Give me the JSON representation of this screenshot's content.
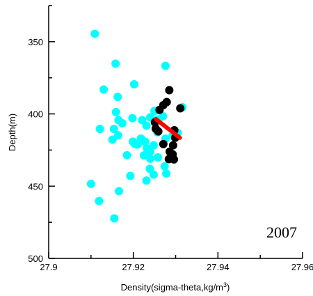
{
  "chart_data": {
    "type": "scatter",
    "xlabel": "Density(sigma-theta,kg/m",
    "xlabel_sup": "3",
    "xlabel_end": ")",
    "ylabel": "Depth(m)",
    "annotation": "2007",
    "xlim": [
      27.9,
      27.96
    ],
    "ylim": [
      325,
      500
    ],
    "y_inverted": true,
    "grid": false,
    "x_ticks": [
      27.9,
      27.92,
      27.94,
      27.96
    ],
    "x_tick_labels": [
      "27.9",
      "27.92",
      "27.94",
      "27.96"
    ],
    "y_ticks": [
      350,
      400,
      450,
      500
    ],
    "y_tick_labels": [
      "350",
      "400",
      "450",
      "500"
    ],
    "colors": {
      "cyan_series": "#00ffff",
      "black_series": "#000000",
      "fit_line": "#ff0000"
    },
    "series": [
      {
        "color": "#00ffff",
        "points": [
          [
            27.9109,
            344.5
          ],
          [
            27.9158,
            365.2
          ],
          [
            27.913,
            383.1
          ],
          [
            27.9163,
            388.2
          ],
          [
            27.9202,
            379.5
          ],
          [
            27.9276,
            366.7
          ],
          [
            27.9159,
            398.7
          ],
          [
            27.9165,
            404.3
          ],
          [
            27.9174,
            406.5
          ],
          [
            27.9198,
            402.9
          ],
          [
            27.9221,
            404.3
          ],
          [
            27.924,
            402.4
          ],
          [
            27.925,
            398.0
          ],
          [
            27.9231,
            408.1
          ],
          [
            27.9218,
            417.1
          ],
          [
            27.9228,
            419.2
          ],
          [
            27.9204,
            420.8
          ],
          [
            27.9154,
            410.4
          ],
          [
            27.9164,
            414.8
          ],
          [
            27.9151,
            417.8
          ],
          [
            27.9121,
            410.4
          ],
          [
            27.9199,
            419.2
          ],
          [
            27.921,
            421.2
          ],
          [
            27.9232,
            423.7
          ],
          [
            27.9248,
            421.7
          ],
          [
            27.9257,
            412.7
          ],
          [
            27.9259,
            403.9
          ],
          [
            27.927,
            401.6
          ],
          [
            27.9276,
            417.1
          ],
          [
            27.9293,
            415.2
          ],
          [
            27.9305,
            413.2
          ],
          [
            27.9316,
            395.4
          ],
          [
            27.924,
            426.0
          ],
          [
            27.9225,
            428.7
          ],
          [
            27.924,
            431.0
          ],
          [
            27.9258,
            430.1
          ],
          [
            27.9274,
            436.3
          ],
          [
            27.9239,
            438.0
          ],
          [
            27.9248,
            442.0
          ],
          [
            27.9231,
            446.1
          ],
          [
            27.9278,
            441.3
          ],
          [
            27.9185,
            428.6
          ],
          [
            27.9193,
            442.9
          ],
          [
            27.91,
            448.4
          ],
          [
            27.9166,
            453.5
          ],
          [
            27.9119,
            460.3
          ],
          [
            27.9155,
            472.3
          ]
        ]
      },
      {
        "color": "#000000",
        "points": [
          [
            27.9285,
            383.6
          ],
          [
            27.9279,
            391.8
          ],
          [
            27.9311,
            396.1
          ],
          [
            27.9271,
            393.9
          ],
          [
            27.9262,
            397.2
          ],
          [
            27.9251,
            405.8
          ],
          [
            27.9253,
            410.2
          ],
          [
            27.9259,
            412.1
          ],
          [
            27.9297,
            411.3
          ],
          [
            27.9299,
            416.5
          ],
          [
            27.9271,
            420.9
          ],
          [
            27.9294,
            421.7
          ],
          [
            27.9286,
            426.1
          ],
          [
            27.9293,
            428.0
          ],
          [
            27.9284,
            431.3
          ],
          [
            27.9296,
            431.5
          ]
        ]
      }
    ],
    "fit_line": {
      "color": "#ff0000",
      "x": [
        27.9253,
        27.931
      ],
      "y": [
        403.5,
        416.5
      ]
    }
  }
}
